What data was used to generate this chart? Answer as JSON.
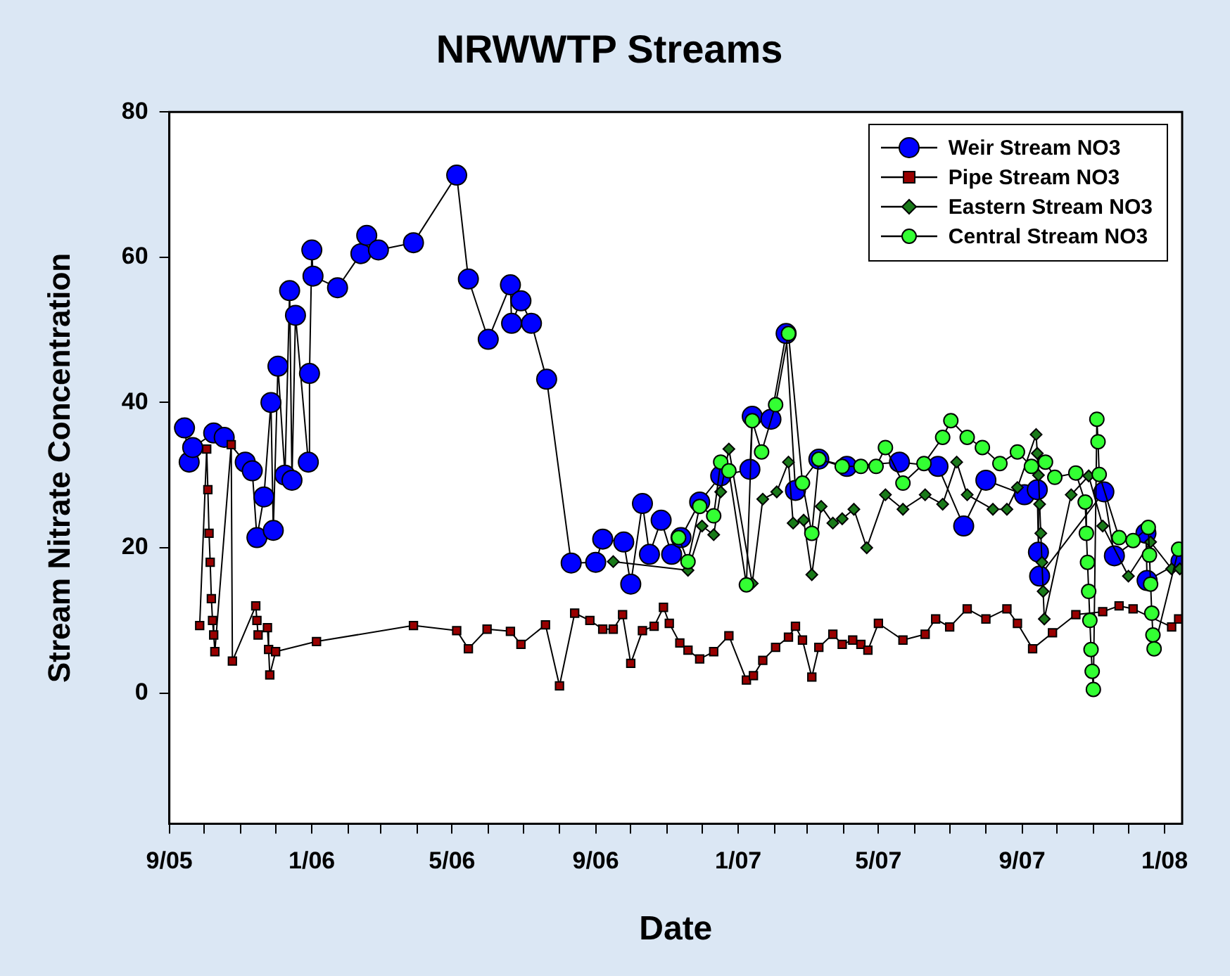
{
  "chart_data": {
    "type": "line",
    "title": "NRWWTP Streams",
    "xlabel": "Date",
    "ylabel": "Stream Nitrate Concentration",
    "xlim": [
      "2005-09-01",
      "2008-01-16"
    ],
    "xticks": [
      {
        "value": "2005-09-01",
        "label": "9/05"
      },
      {
        "value": "2005-10-01",
        "label": null
      },
      {
        "value": "2005-11-01",
        "label": null
      },
      {
        "value": "2005-12-01",
        "label": null
      },
      {
        "value": "2006-01-01",
        "label": "1/06"
      },
      {
        "value": "2006-02-01",
        "label": null
      },
      {
        "value": "2006-03-01",
        "label": null
      },
      {
        "value": "2006-04-01",
        "label": null
      },
      {
        "value": "2006-05-01",
        "label": "5/06"
      },
      {
        "value": "2006-06-01",
        "label": null
      },
      {
        "value": "2006-07-01",
        "label": null
      },
      {
        "value": "2006-08-01",
        "label": null
      },
      {
        "value": "2006-09-01",
        "label": "9/06"
      },
      {
        "value": "2006-10-01",
        "label": null
      },
      {
        "value": "2006-11-01",
        "label": null
      },
      {
        "value": "2006-12-01",
        "label": null
      },
      {
        "value": "2007-01-01",
        "label": "1/07"
      },
      {
        "value": "2007-02-01",
        "label": null
      },
      {
        "value": "2007-03-01",
        "label": null
      },
      {
        "value": "2007-04-01",
        "label": null
      },
      {
        "value": "2007-05-01",
        "label": "5/07"
      },
      {
        "value": "2007-06-01",
        "label": null
      },
      {
        "value": "2007-07-01",
        "label": null
      },
      {
        "value": "2007-08-01",
        "label": null
      },
      {
        "value": "2007-09-01",
        "label": "9/07"
      },
      {
        "value": "2007-10-01",
        "label": null
      },
      {
        "value": "2007-11-01",
        "label": null
      },
      {
        "value": "2007-12-01",
        "label": null
      },
      {
        "value": "2008-01-01",
        "label": "1/08"
      }
    ],
    "ylim": [
      -18,
      80
    ],
    "yticks": [
      0,
      20,
      40,
      60,
      80
    ],
    "legend": "top right",
    "line_style": "solid",
    "series": [
      {
        "name": "Weir Stream NO3",
        "color": "#0000ff",
        "marker": "circle",
        "x": [
          "2005-09-14",
          "2005-09-18",
          "2005-09-21",
          "2005-10-09",
          "2005-10-18",
          "2005-11-05",
          "2005-11-11",
          "2005-11-15",
          "2005-11-21",
          "2005-11-27",
          "2005-11-29",
          "2005-12-03",
          "2005-12-09",
          "2005-12-13",
          "2005-12-15",
          "2005-12-18",
          "2005-12-29",
          "2005-12-30",
          "2006-01-01",
          "2006-01-02",
          "2006-01-23",
          "2006-02-12",
          "2006-02-17",
          "2006-02-27",
          "2006-03-29",
          "2006-05-05",
          "2006-05-15",
          "2006-06-01",
          "2006-06-20",
          "2006-06-21",
          "2006-06-29",
          "2006-07-08",
          "2006-07-21",
          "2006-08-11",
          "2006-09-01",
          "2006-09-07",
          "2006-09-25",
          "2006-10-01",
          "2006-10-11",
          "2006-10-17",
          "2006-10-27",
          "2006-11-05",
          "2006-11-13",
          "2006-11-29",
          "2006-12-17",
          "2007-01-11",
          "2007-01-13",
          "2007-01-29",
          "2007-02-11",
          "2007-02-19",
          "2007-03-11",
          "2007-04-04",
          "2007-05-19",
          "2007-06-21",
          "2007-07-13",
          "2007-08-01",
          "2007-09-03",
          "2007-09-14",
          "2007-09-15",
          "2007-09-16",
          "2007-11-10",
          "2007-11-19",
          "2007-12-16",
          "2007-12-17",
          "2008-01-15"
        ],
        "values": [
          36.5,
          31.8,
          33.8,
          35.8,
          35.2,
          31.8,
          30.6,
          21.4,
          27,
          40,
          22.4,
          45,
          30,
          55.4,
          29.3,
          52,
          31.8,
          44,
          61,
          57.4,
          55.8,
          60.5,
          63,
          61,
          62,
          71.3,
          57,
          48.7,
          56.2,
          50.9,
          54,
          50.9,
          43.2,
          17.9,
          18,
          21.2,
          20.8,
          15,
          26.1,
          19.1,
          23.8,
          19.1,
          21.4,
          26.3,
          29.9,
          30.8,
          38.1,
          37.7,
          49.5,
          27.9,
          32.2,
          31.2,
          31.8,
          31.2,
          23,
          29.3,
          27.3,
          28,
          19.4,
          16.1,
          27.7,
          18.9,
          22,
          15.5,
          18.1
        ]
      },
      {
        "name": "Pipe Stream NO3",
        "color": "#990000",
        "marker": "square",
        "x": [
          "2005-09-27",
          "2005-10-03",
          "2005-10-04",
          "2005-10-05",
          "2005-10-06",
          "2005-10-07",
          "2005-10-08",
          "2005-10-09",
          "2005-10-10",
          "2005-10-24",
          "2005-10-25",
          "2005-11-14",
          "2005-11-15",
          "2005-11-16",
          "2005-11-24",
          "2005-11-25",
          "2005-11-26",
          "2005-12-01",
          "2006-01-05",
          "2006-03-29",
          "2006-05-05",
          "2006-05-15",
          "2006-05-31",
          "2006-06-20",
          "2006-06-29",
          "2006-07-20",
          "2006-08-01",
          "2006-08-14",
          "2006-08-27",
          "2006-09-07",
          "2006-09-16",
          "2006-09-24",
          "2006-10-01",
          "2006-10-11",
          "2006-10-21",
          "2006-10-29",
          "2006-11-03",
          "2006-11-12",
          "2006-11-19",
          "2006-11-29",
          "2006-12-11",
          "2006-12-24",
          "2007-01-08",
          "2007-01-14",
          "2007-01-22",
          "2007-02-02",
          "2007-02-13",
          "2007-02-19",
          "2007-02-25",
          "2007-03-05",
          "2007-03-11",
          "2007-03-23",
          "2007-03-31",
          "2007-04-09",
          "2007-04-16",
          "2007-04-22",
          "2007-05-01",
          "2007-05-22",
          "2007-06-10",
          "2007-06-19",
          "2007-07-01",
          "2007-07-16",
          "2007-08-01",
          "2007-08-19",
          "2007-08-28",
          "2007-09-10",
          "2007-09-27",
          "2007-10-17",
          "2007-11-09",
          "2007-11-23",
          "2007-12-05",
          "2008-01-07",
          "2008-01-13"
        ],
        "values": [
          9.3,
          33.6,
          28,
          22,
          18,
          13,
          10,
          8,
          5.7,
          34.2,
          4.4,
          12,
          10,
          8,
          9,
          6,
          2.5,
          5.7,
          7.1,
          9.3,
          8.6,
          6.1,
          8.8,
          8.5,
          6.7,
          9.4,
          1,
          11,
          10,
          8.8,
          8.8,
          10.8,
          4.1,
          8.6,
          9.2,
          11.8,
          9.6,
          6.9,
          5.9,
          4.7,
          5.7,
          7.9,
          1.8,
          2.4,
          4.5,
          6.3,
          7.7,
          9.2,
          7.3,
          2.2,
          6.3,
          8.1,
          6.7,
          7.3,
          6.7,
          5.9,
          9.6,
          7.3,
          8.1,
          10.2,
          9.1,
          11.6,
          10.2,
          11.6,
          9.6,
          6.1,
          8.3,
          10.8,
          11.2,
          12,
          11.6,
          9.1,
          10.2
        ]
      },
      {
        "name": "Eastern Stream NO3",
        "color": "#1a7a1a",
        "marker": "diamond",
        "x": [
          "2006-09-16",
          "2006-11-19",
          "2006-12-01",
          "2006-12-11",
          "2006-12-17",
          "2006-12-24",
          "2007-01-13",
          "2007-01-22",
          "2007-02-03",
          "2007-02-13",
          "2007-02-17",
          "2007-02-26",
          "2007-03-05",
          "2007-03-13",
          "2007-03-23",
          "2007-03-31",
          "2007-04-10",
          "2007-04-21",
          "2007-05-07",
          "2007-05-22",
          "2007-06-10",
          "2007-06-25",
          "2007-07-07",
          "2007-07-16",
          "2007-08-07",
          "2007-08-19",
          "2007-08-28",
          "2007-09-13",
          "2007-09-14",
          "2007-09-15",
          "2007-09-16",
          "2007-09-17",
          "2007-09-18",
          "2007-09-19",
          "2007-09-20",
          "2007-10-13",
          "2007-10-28",
          "2007-11-09",
          "2007-12-01",
          "2007-12-20",
          "2008-01-07",
          "2008-01-14"
        ],
        "values": [
          18.1,
          16.9,
          23,
          21.8,
          27.7,
          33.6,
          15.1,
          26.7,
          27.7,
          31.8,
          23.4,
          23.8,
          16.3,
          25.7,
          23.4,
          24,
          25.3,
          20,
          27.3,
          25.3,
          27.3,
          26,
          31.8,
          27.3,
          25.3,
          25.3,
          28.3,
          35.6,
          33,
          30,
          26,
          22,
          18,
          14,
          10.2,
          27.3,
          29.9,
          23,
          16.1,
          20.8,
          17.1,
          17.1
        ]
      },
      {
        "name": "Central Stream NO3",
        "color": "#33ff33",
        "marker": "circle",
        "x": [
          "2006-11-11",
          "2006-11-19",
          "2006-11-29",
          "2006-12-11",
          "2006-12-17",
          "2006-12-24",
          "2007-01-08",
          "2007-01-13",
          "2007-01-21",
          "2007-02-02",
          "2007-02-13",
          "2007-02-25",
          "2007-03-05",
          "2007-03-11",
          "2007-03-31",
          "2007-04-16",
          "2007-04-29",
          "2007-05-07",
          "2007-05-22",
          "2007-06-09",
          "2007-06-25",
          "2007-07-02",
          "2007-07-16",
          "2007-07-29",
          "2007-08-13",
          "2007-08-28",
          "2007-09-09",
          "2007-09-21",
          "2007-09-29",
          "2007-10-17",
          "2007-10-25",
          "2007-10-26",
          "2007-10-27",
          "2007-10-28",
          "2007-10-29",
          "2007-10-30",
          "2007-10-31",
          "2007-11-01",
          "2007-11-04",
          "2007-11-05",
          "2007-11-06",
          "2007-11-23",
          "2007-12-05",
          "2007-12-18",
          "2007-12-19",
          "2007-12-20",
          "2007-12-21",
          "2007-12-22",
          "2007-12-23",
          "2008-01-13"
        ],
        "values": [
          21.4,
          18.1,
          25.7,
          24.4,
          31.8,
          30.6,
          14.9,
          37.5,
          33.2,
          39.7,
          49.5,
          28.9,
          22,
          32.2,
          31.2,
          31.2,
          31.2,
          33.8,
          28.9,
          31.6,
          35.2,
          37.5,
          35.2,
          33.8,
          31.6,
          33.2,
          31.2,
          31.8,
          29.7,
          30.3,
          26.3,
          22,
          18,
          14,
          10,
          6,
          3,
          0.5,
          37.7,
          34.6,
          30.1,
          21.4,
          21,
          22.8,
          19,
          15,
          11,
          8,
          6.1,
          19.8
        ]
      }
    ]
  }
}
